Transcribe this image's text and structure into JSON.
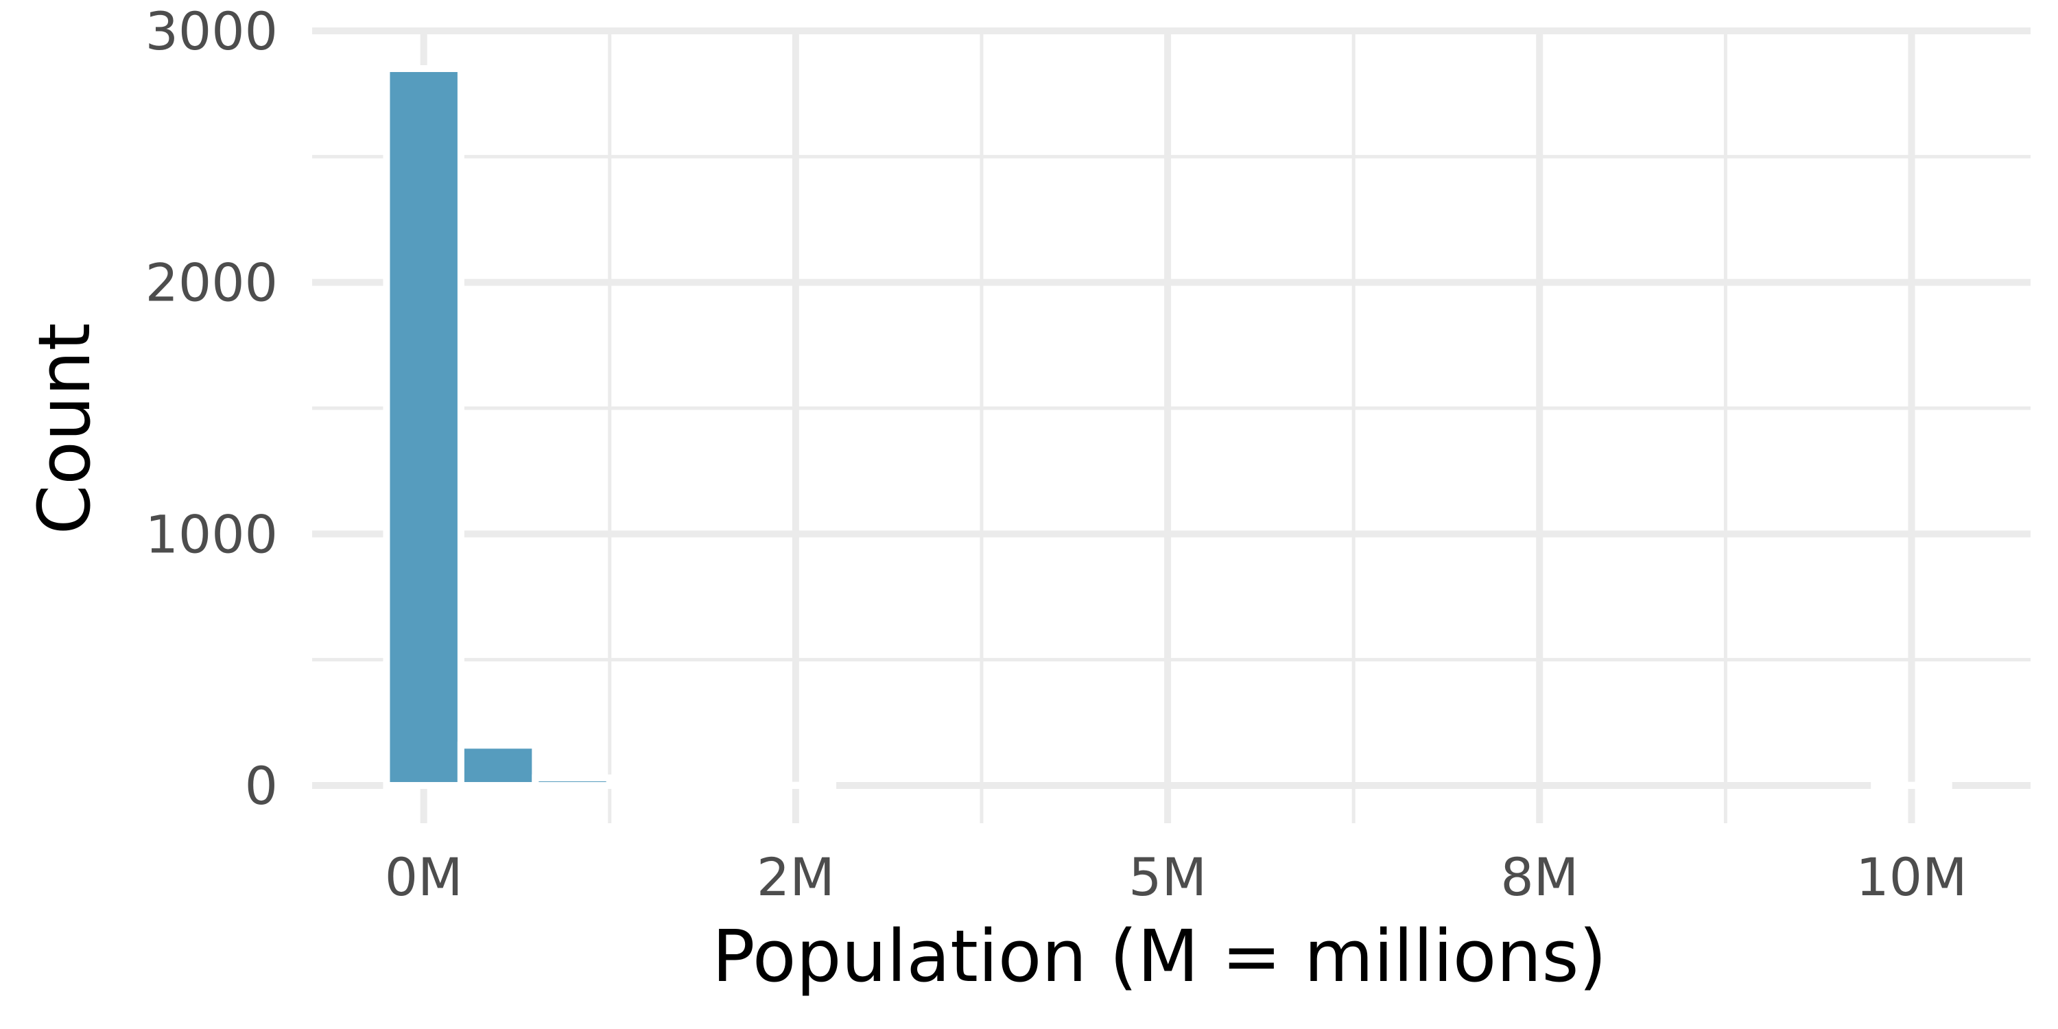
{
  "chart_data": {
    "type": "bar",
    "title": "",
    "xlabel": "Population (M = millions)",
    "ylabel": "Count",
    "x_tick_labels": [
      "0M",
      "2M",
      "5M",
      "8M",
      "10M"
    ],
    "x_tick_values": [
      0,
      2.5,
      5,
      7.5,
      10
    ],
    "y_tick_labels": [
      "0",
      "1000",
      "2000",
      "3000"
    ],
    "y_tick_values": [
      0,
      1000,
      2000,
      3000
    ],
    "xlim": [
      -0.75,
      10.8
    ],
    "ylim": [
      -150,
      3000
    ],
    "bin_width": 0.5,
    "bins": [
      {
        "x": 0.0,
        "count": 2850
      },
      {
        "x": 0.5,
        "count": 160
      },
      {
        "x": 1.0,
        "count": 30
      },
      {
        "x": 1.5,
        "count": 3
      },
      {
        "x": 2.0,
        "count": 2
      },
      {
        "x": 2.5,
        "count": 1
      },
      {
        "x": 3.0,
        "count": 0
      },
      {
        "x": 3.5,
        "count": 0
      },
      {
        "x": 4.0,
        "count": 0
      },
      {
        "x": 4.5,
        "count": 0
      },
      {
        "x": 5.0,
        "count": 0
      },
      {
        "x": 5.5,
        "count": 0
      },
      {
        "x": 6.0,
        "count": 0
      },
      {
        "x": 6.5,
        "count": 0
      },
      {
        "x": 7.0,
        "count": 0
      },
      {
        "x": 7.5,
        "count": 0
      },
      {
        "x": 8.0,
        "count": 0
      },
      {
        "x": 8.5,
        "count": 0
      },
      {
        "x": 9.0,
        "count": 0
      },
      {
        "x": 9.5,
        "count": 0
      },
      {
        "x": 10.0,
        "count": 1
      }
    ],
    "grid": true,
    "legend": "none",
    "bar_color": "#569cbe",
    "grid_color": "#ebebeb"
  }
}
